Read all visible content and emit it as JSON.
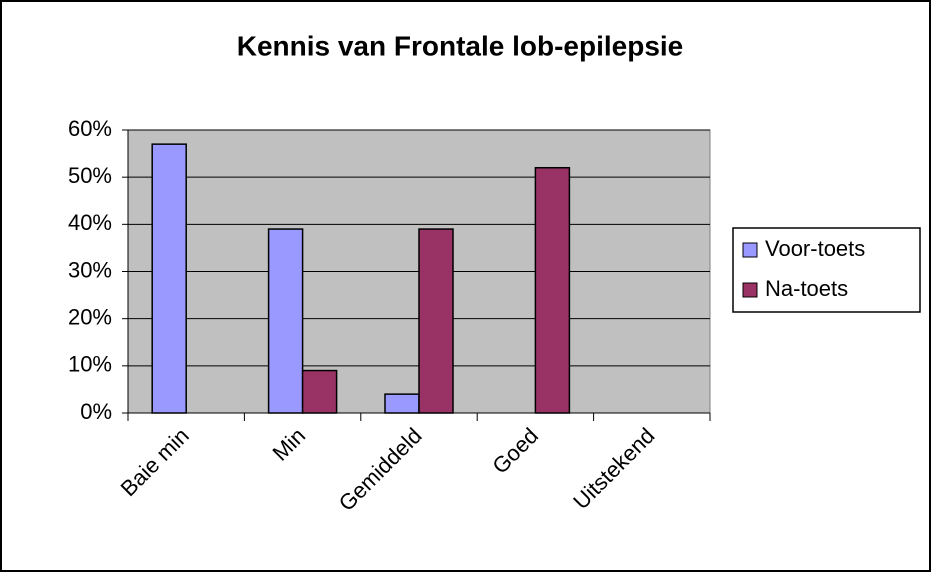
{
  "chart_data": {
    "type": "bar",
    "title": "Kennis van Frontale lob-epilepsie",
    "categories": [
      "Baie min",
      "Min",
      "Gemiddeld",
      "Goed",
      "Uitstekend"
    ],
    "series": [
      {
        "name": "Voor-toets",
        "color": "#9999ff",
        "values": [
          57,
          39,
          4,
          0,
          0
        ]
      },
      {
        "name": "Na-toets",
        "color": "#993366",
        "values": [
          0,
          9,
          39,
          52,
          0
        ]
      }
    ],
    "ylim": [
      0,
      60
    ],
    "yticks": [
      {
        "value": 0,
        "label": "0%"
      },
      {
        "value": 10,
        "label": "10%"
      },
      {
        "value": 20,
        "label": "20%"
      },
      {
        "value": 30,
        "label": "30%"
      },
      {
        "value": 40,
        "label": "40%"
      },
      {
        "value": 50,
        "label": "50%"
      },
      {
        "value": 60,
        "label": "60%"
      }
    ],
    "grid": true,
    "legend": "right",
    "plot_background": "#c0c0c0"
  }
}
